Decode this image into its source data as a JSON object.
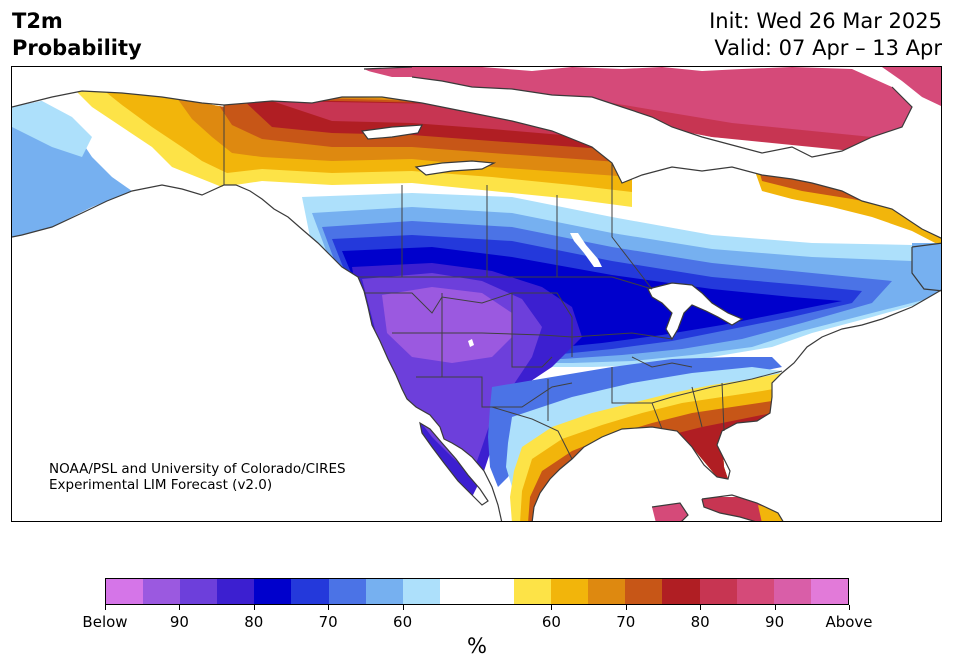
{
  "header": {
    "title_line1": "T2m",
    "title_line2": "Probability",
    "init": "Init: Wed 26 Mar 2025",
    "valid": "Valid: 07 Apr – 13 Apr"
  },
  "credit": {
    "line1": "NOAA/PSL and University of Colorado/CIRES",
    "line2": "Experimental LIM Forecast (v2.0)"
  },
  "colors": {
    "below": [
      "#d575e8",
      "#9b59e0",
      "#6d3fdb",
      "#3c1fd0",
      "#0000cc",
      "#2439db",
      "#4b73e6",
      "#76b0f0",
      "#ade0fb"
    ],
    "neutral": [
      "#ffffff",
      "#ffffff"
    ],
    "above": [
      "#fde347",
      "#f2b50b",
      "#de8910",
      "#c75617",
      "#b01e23",
      "#c73552",
      "#d54a79",
      "#d95ea8",
      "#e27ad9"
    ],
    "water": "#ffffff",
    "boundary": "#404040"
  },
  "colorbar": {
    "unit_label": "%",
    "tick_labels": [
      "Below",
      "90",
      "80",
      "70",
      "60",
      "60",
      "70",
      "80",
      "90",
      "Above"
    ]
  }
}
